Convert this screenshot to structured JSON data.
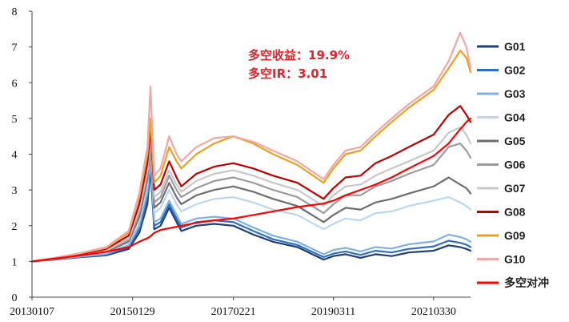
{
  "chart_data": {
    "type": "line",
    "title": "",
    "xlabel": "",
    "ylabel": "",
    "ylim": [
      0,
      8
    ],
    "y_ticks": [
      0,
      1,
      2,
      3,
      4,
      5,
      6,
      7,
      8
    ],
    "x_tick_labels": [
      "20130107",
      "20150129",
      "20170221",
      "20190311",
      "20210330"
    ],
    "grid": false,
    "legend_position": "right",
    "annotations": {
      "long_short_return": "多空收益：19.9%",
      "long_short_ir": "多空IR：3.01"
    },
    "x": [
      "20130107",
      "20130625",
      "20140110",
      "20140715",
      "20141231",
      "20150320",
      "20150520",
      "20150612",
      "20150710",
      "20150826",
      "20151030",
      "20151224",
      "20160129",
      "20160520",
      "20160930",
      "20170221",
      "20170720",
      "20171215",
      "20180615",
      "20181228",
      "20190311",
      "20190610",
      "20190930",
      "20200120",
      "20200520",
      "20200925",
      "20210330",
      "20210720",
      "20211015",
      "20211130",
      "20211231"
    ],
    "series": [
      {
        "name": "G01",
        "color": "#1f3e7a",
        "values": [
          1.0,
          1.05,
          1.12,
          1.17,
          1.35,
          1.8,
          2.6,
          3.6,
          1.9,
          2.0,
          2.5,
          2.1,
          1.85,
          2.0,
          2.05,
          2.0,
          1.75,
          1.55,
          1.4,
          1.05,
          1.15,
          1.2,
          1.1,
          1.2,
          1.15,
          1.25,
          1.3,
          1.45,
          1.4,
          1.35,
          1.3
        ]
      },
      {
        "name": "G02",
        "color": "#2e6fc4",
        "values": [
          1.0,
          1.06,
          1.13,
          1.19,
          1.4,
          1.9,
          2.8,
          3.8,
          2.0,
          2.1,
          2.6,
          2.2,
          1.95,
          2.1,
          2.15,
          2.1,
          1.85,
          1.62,
          1.46,
          1.12,
          1.22,
          1.28,
          1.18,
          1.3,
          1.25,
          1.35,
          1.42,
          1.58,
          1.52,
          1.47,
          1.4
        ]
      },
      {
        "name": "G03",
        "color": "#7fb2e0",
        "values": [
          1.0,
          1.06,
          1.14,
          1.21,
          1.45,
          2.0,
          2.95,
          3.95,
          2.1,
          2.2,
          2.7,
          2.3,
          2.05,
          2.2,
          2.25,
          2.2,
          1.95,
          1.72,
          1.55,
          1.2,
          1.32,
          1.38,
          1.28,
          1.4,
          1.36,
          1.48,
          1.56,
          1.75,
          1.68,
          1.62,
          1.55
        ]
      },
      {
        "name": "G04",
        "color": "#bcd6ef",
        "values": [
          1.0,
          1.07,
          1.16,
          1.25,
          1.52,
          2.15,
          3.15,
          4.15,
          2.35,
          2.5,
          3.0,
          2.6,
          2.4,
          2.6,
          2.75,
          2.8,
          2.65,
          2.45,
          2.3,
          1.9,
          2.05,
          2.2,
          2.15,
          2.35,
          2.4,
          2.55,
          2.7,
          2.8,
          2.65,
          2.55,
          2.45
        ]
      },
      {
        "name": "G05",
        "color": "#6e6e6e",
        "values": [
          1.0,
          1.07,
          1.17,
          1.27,
          1.56,
          2.25,
          3.3,
          4.3,
          2.5,
          2.65,
          3.2,
          2.8,
          2.6,
          2.85,
          3.0,
          3.1,
          2.95,
          2.75,
          2.55,
          2.1,
          2.3,
          2.5,
          2.45,
          2.65,
          2.75,
          2.9,
          3.1,
          3.35,
          3.15,
          3.05,
          2.9
        ]
      },
      {
        "name": "G06",
        "color": "#9b9b9b",
        "values": [
          1.0,
          1.08,
          1.18,
          1.29,
          1.6,
          2.35,
          3.45,
          4.45,
          2.65,
          2.8,
          3.4,
          3.0,
          2.8,
          3.05,
          3.25,
          3.35,
          3.2,
          3.0,
          2.8,
          2.35,
          2.6,
          2.85,
          2.85,
          3.1,
          3.25,
          3.45,
          3.7,
          4.2,
          4.3,
          4.1,
          3.9
        ]
      },
      {
        "name": "G07",
        "color": "#c8c8c8",
        "values": [
          1.0,
          1.08,
          1.19,
          1.31,
          1.65,
          2.45,
          3.55,
          4.55,
          2.8,
          2.95,
          3.55,
          3.15,
          2.95,
          3.25,
          3.45,
          3.55,
          3.4,
          3.2,
          3.0,
          2.55,
          2.85,
          3.1,
          3.15,
          3.4,
          3.6,
          3.8,
          4.1,
          4.6,
          4.75,
          4.55,
          4.3
        ]
      },
      {
        "name": "G08",
        "color": "#c00000",
        "values": [
          1.0,
          1.09,
          1.21,
          1.35,
          1.72,
          2.6,
          3.75,
          4.75,
          3.0,
          3.15,
          3.8,
          3.35,
          3.1,
          3.45,
          3.65,
          3.75,
          3.6,
          3.4,
          3.2,
          2.75,
          3.05,
          3.35,
          3.4,
          3.75,
          3.95,
          4.2,
          4.55,
          5.1,
          5.35,
          5.1,
          4.9
        ]
      },
      {
        "name": "G09",
        "color": "#f0a020",
        "values": [
          1.0,
          1.1,
          1.23,
          1.38,
          1.8,
          2.8,
          4.0,
          5.0,
          3.2,
          3.4,
          4.2,
          3.8,
          3.6,
          4.0,
          4.3,
          4.5,
          4.3,
          4.0,
          3.7,
          3.2,
          3.6,
          4.0,
          4.1,
          4.5,
          4.9,
          5.3,
          5.8,
          6.4,
          6.9,
          6.7,
          6.3
        ]
      },
      {
        "name": "G10",
        "color": "#f2a6a6",
        "values": [
          1.0,
          1.1,
          1.24,
          1.4,
          1.85,
          2.9,
          4.2,
          5.9,
          3.4,
          3.6,
          4.5,
          4.0,
          3.8,
          4.2,
          4.45,
          4.5,
          4.35,
          4.1,
          3.8,
          3.3,
          3.7,
          4.1,
          4.2,
          4.6,
          5.0,
          5.4,
          5.9,
          6.6,
          7.4,
          7.0,
          6.4
        ]
      },
      {
        "name": "多空对冲",
        "color": "#ff0000",
        "values": [
          1.0,
          1.08,
          1.17,
          1.27,
          1.4,
          1.55,
          1.65,
          1.7,
          1.8,
          1.88,
          1.93,
          1.97,
          2.0,
          2.08,
          2.15,
          2.2,
          2.3,
          2.4,
          2.52,
          2.62,
          2.7,
          2.85,
          3.0,
          3.15,
          3.35,
          3.6,
          3.95,
          4.3,
          4.7,
          4.9,
          5.0
        ]
      }
    ]
  }
}
